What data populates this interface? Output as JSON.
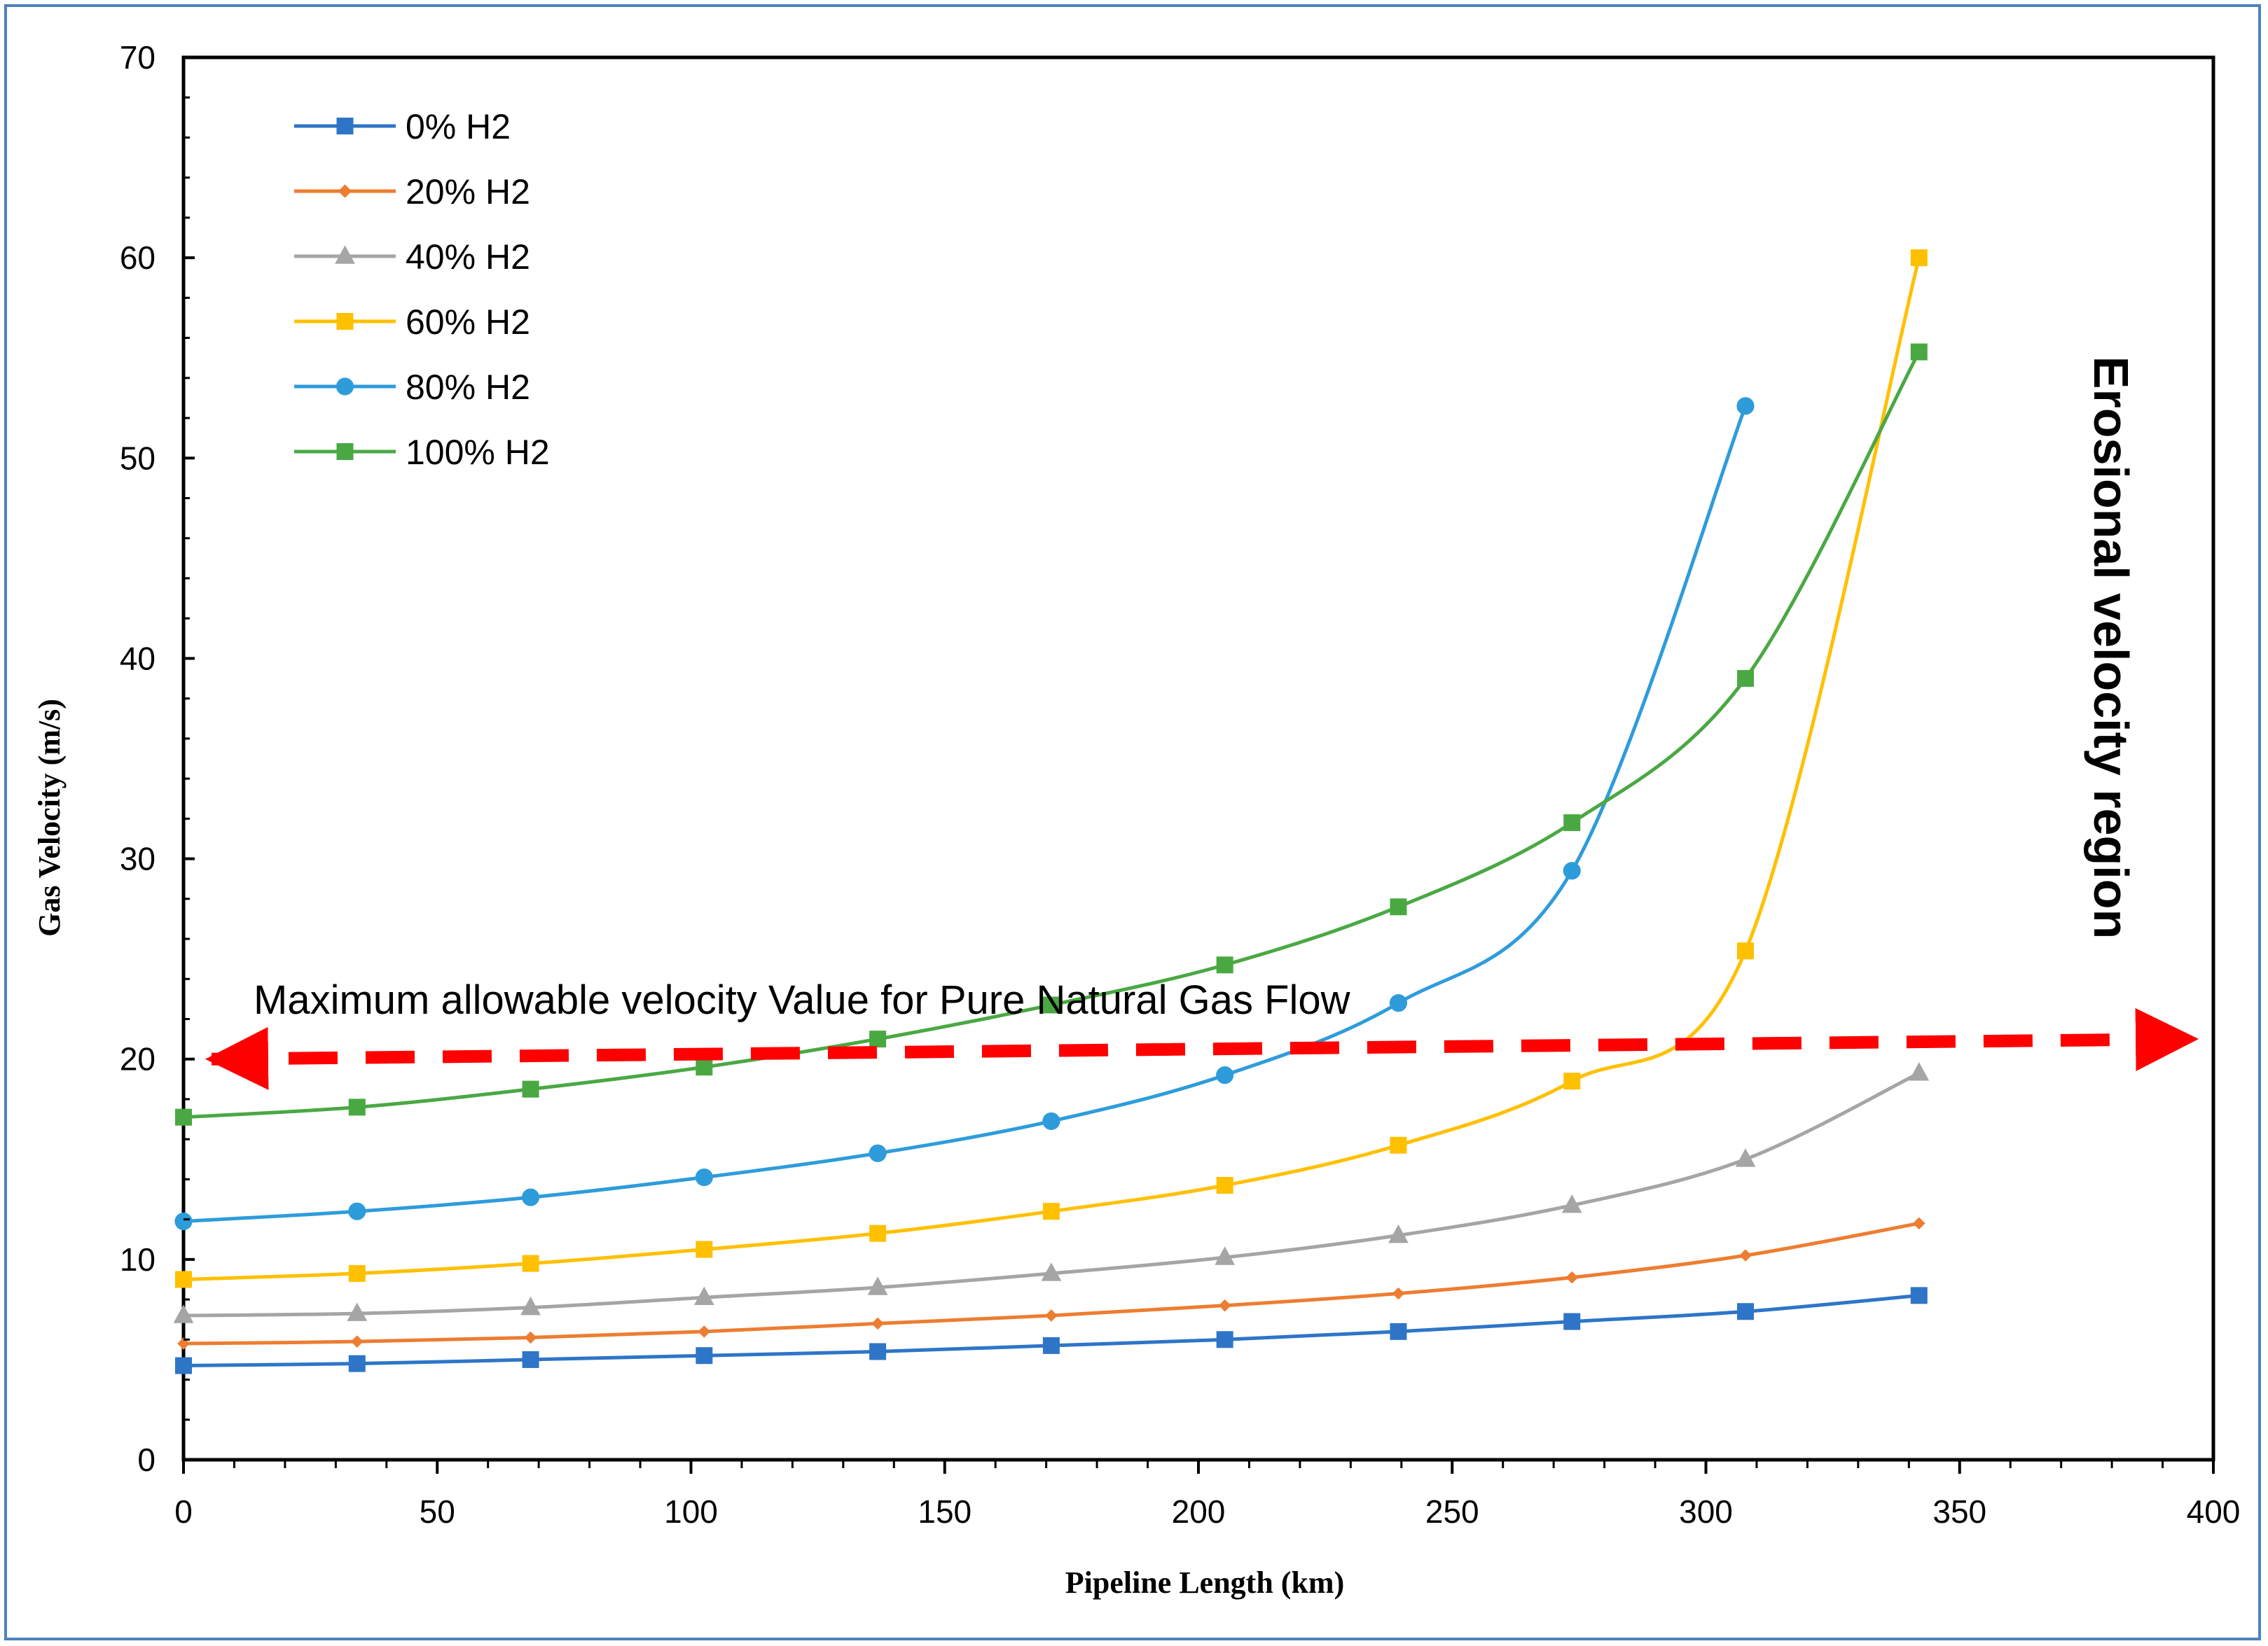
{
  "chart_data": {
    "type": "line",
    "title": "",
    "xlabel": "Pipeline Length (km)",
    "ylabel": "Gas Velocity (m/s)",
    "xlim": [
      0,
      400
    ],
    "ylim": [
      0,
      70
    ],
    "xticks": [
      0,
      50,
      100,
      150,
      200,
      250,
      300,
      350,
      400
    ],
    "yticks": [
      0,
      10,
      20,
      30,
      40,
      50,
      60,
      70
    ],
    "grid": false,
    "legend_position": "top-left",
    "series": [
      {
        "name": "0% H2",
        "color": "#2e75c8",
        "marker": "square",
        "x": [
          0,
          34.2,
          68.4,
          102.6,
          136.8,
          171,
          205.2,
          239.4,
          273.6,
          307.8,
          342
        ],
        "y": [
          4.7,
          4.8,
          5.0,
          5.2,
          5.4,
          5.7,
          6.0,
          6.4,
          6.9,
          7.4,
          8.2
        ]
      },
      {
        "name": "20% H2",
        "color": "#ed7d31",
        "marker": "diamond",
        "x": [
          0,
          34.2,
          68.4,
          102.6,
          136.8,
          171,
          205.2,
          239.4,
          273.6,
          307.8,
          342
        ],
        "y": [
          5.8,
          5.9,
          6.1,
          6.4,
          6.8,
          7.2,
          7.7,
          8.3,
          9.1,
          10.2,
          11.8
        ]
      },
      {
        "name": "40% H2",
        "color": "#a5a5a5",
        "marker": "triangle",
        "x": [
          0,
          34.2,
          68.4,
          102.6,
          136.8,
          171,
          205.2,
          239.4,
          273.6,
          307.8,
          342
        ],
        "y": [
          7.2,
          7.3,
          7.6,
          8.1,
          8.6,
          9.3,
          10.1,
          11.2,
          12.7,
          15.0,
          19.3
        ]
      },
      {
        "name": "60% H2",
        "color": "#ffc000",
        "marker": "square",
        "x": [
          0,
          34.2,
          68.4,
          102.6,
          136.8,
          171,
          205.2,
          239.4,
          273.6,
          307.8,
          342
        ],
        "y": [
          9.0,
          9.3,
          9.8,
          10.5,
          11.3,
          12.4,
          13.7,
          15.7,
          18.9,
          25.4,
          60.0
        ]
      },
      {
        "name": "80% H2",
        "color": "#2e9cdb",
        "marker": "circle",
        "x": [
          0,
          34.2,
          68.4,
          102.6,
          136.8,
          171,
          205.2,
          239.4,
          273.6,
          307.8
        ],
        "y": [
          11.9,
          12.4,
          13.1,
          14.1,
          15.3,
          16.9,
          19.2,
          22.8,
          29.4,
          52.6
        ]
      },
      {
        "name": "100% H2",
        "color": "#4aa843",
        "marker": "square",
        "x": [
          0,
          34.2,
          68.4,
          102.6,
          136.8,
          171,
          205.2,
          239.4,
          273.6,
          307.8,
          342
        ],
        "y": [
          17.1,
          17.6,
          18.5,
          19.6,
          21.0,
          22.7,
          24.7,
          27.6,
          31.8,
          39.0,
          55.3
        ]
      }
    ],
    "annotations": {
      "max_line_label": "Maximum allowable velocity Value for Pure Natural Gas Flow",
      "max_line_y_start": 20.0,
      "max_line_y_end": 21.0,
      "max_line_color": "#ff0000",
      "erosional_label": "Erosional velocity region"
    }
  }
}
